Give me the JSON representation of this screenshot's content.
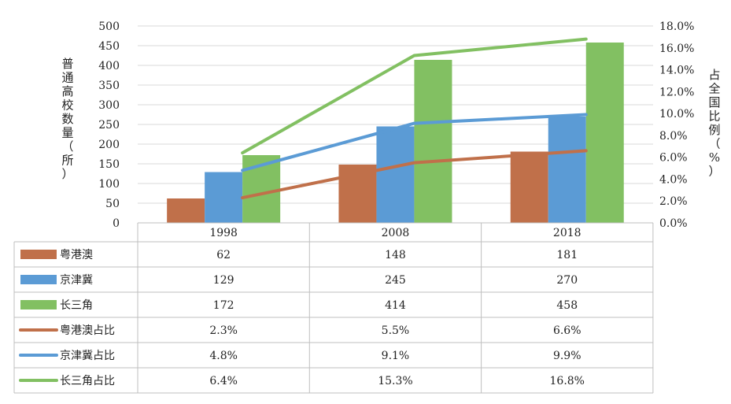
{
  "chart_data": {
    "type": "bar",
    "categories": [
      "1998",
      "2008",
      "2018"
    ],
    "series": [
      {
        "name": "粤港澳",
        "type": "bar",
        "axis": "left",
        "color": "#C0704A",
        "values": [
          62,
          148,
          181
        ],
        "labels": [
          "62",
          "148",
          "181"
        ]
      },
      {
        "name": "京津冀",
        "type": "bar",
        "axis": "left",
        "color": "#5B9BD5",
        "values": [
          129,
          245,
          270
        ],
        "labels": [
          "129",
          "245",
          "270"
        ]
      },
      {
        "name": "长三角",
        "type": "bar",
        "axis": "left",
        "color": "#82C062",
        "values": [
          172,
          414,
          458
        ],
        "labels": [
          "172",
          "414",
          "458"
        ]
      },
      {
        "name": "粤港澳占比",
        "type": "line",
        "axis": "right",
        "color": "#C0704A",
        "values": [
          2.3,
          5.5,
          6.6
        ],
        "labels": [
          "2.3%",
          "5.5%",
          "6.6%"
        ]
      },
      {
        "name": "京津冀占比",
        "type": "line",
        "axis": "right",
        "color": "#5B9BD5",
        "values": [
          4.8,
          9.1,
          9.9
        ],
        "labels": [
          "4.8%",
          "9.1%",
          "9.9%"
        ]
      },
      {
        "name": "长三角占比",
        "type": "line",
        "axis": "right",
        "color": "#82C062",
        "values": [
          6.4,
          15.3,
          16.8
        ],
        "labels": [
          "6.4%",
          "15.3%",
          "16.8%"
        ]
      }
    ],
    "ylabel": "普通高校数量（所）",
    "y2label": "占全国比例（%）",
    "ylim": [
      0,
      500
    ],
    "y2lim": [
      0,
      18
    ],
    "yticks": [
      "0",
      "50",
      "100",
      "150",
      "200",
      "250",
      "300",
      "350",
      "400",
      "450",
      "500"
    ],
    "y2ticks": [
      "0.0%",
      "2.0%",
      "4.0%",
      "6.0%",
      "8.0%",
      "10.0%",
      "12.0%",
      "14.0%",
      "16.0%",
      "18.0%"
    ],
    "grid": true,
    "legend": "data-table"
  }
}
